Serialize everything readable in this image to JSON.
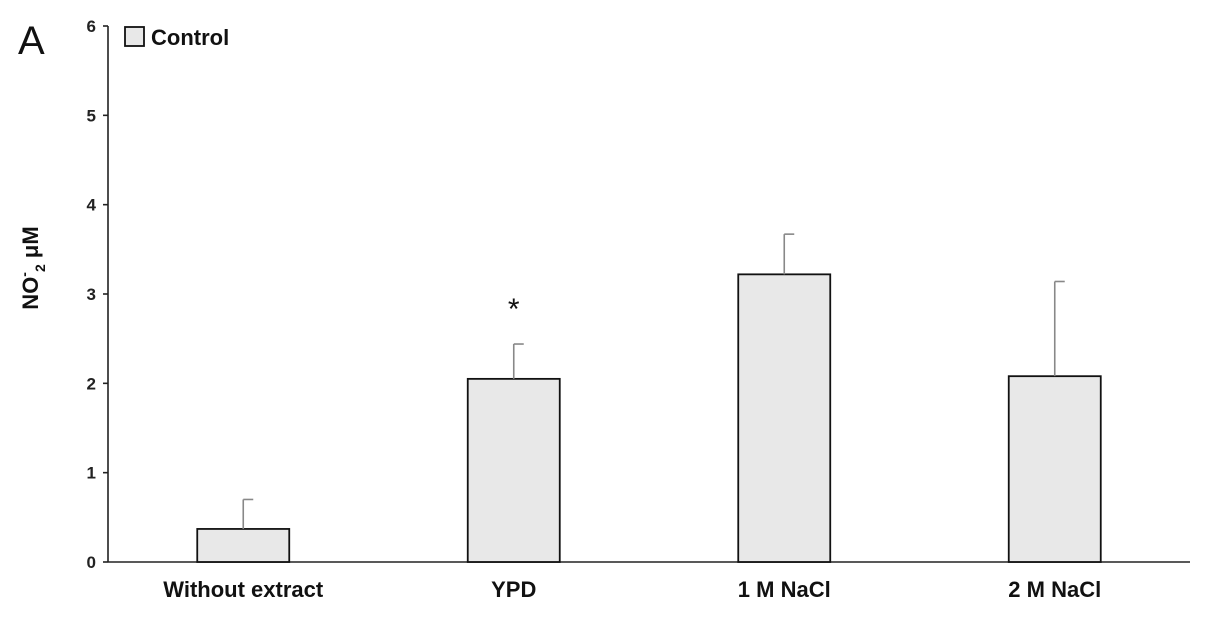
{
  "panel_label": "A",
  "chart_data": {
    "type": "bar",
    "categories": [
      "Without extract",
      "YPD",
      "1 M NaCl",
      "2 M NaCl"
    ],
    "series": [
      {
        "name": "Control",
        "values": [
          0.37,
          2.05,
          3.22,
          2.08
        ],
        "errors": [
          0.33,
          0.39,
          0.45,
          1.06
        ]
      }
    ],
    "ylabel": {
      "main": "NO",
      "sup": "-",
      "sub": "2",
      "unit": " μM"
    },
    "ylim": [
      0,
      6
    ],
    "yticks": [
      "0",
      "1",
      "2",
      "3",
      "4",
      "5",
      "6"
    ],
    "annotations": [
      {
        "category": "YPD",
        "text": "*"
      }
    ],
    "legend": {
      "placement": "top-left"
    },
    "grid": false,
    "colors": {
      "bar_fill": "#e8e8e8",
      "bar_stroke": "#111111",
      "axis": "#222222",
      "error_bar": "#888888"
    }
  }
}
